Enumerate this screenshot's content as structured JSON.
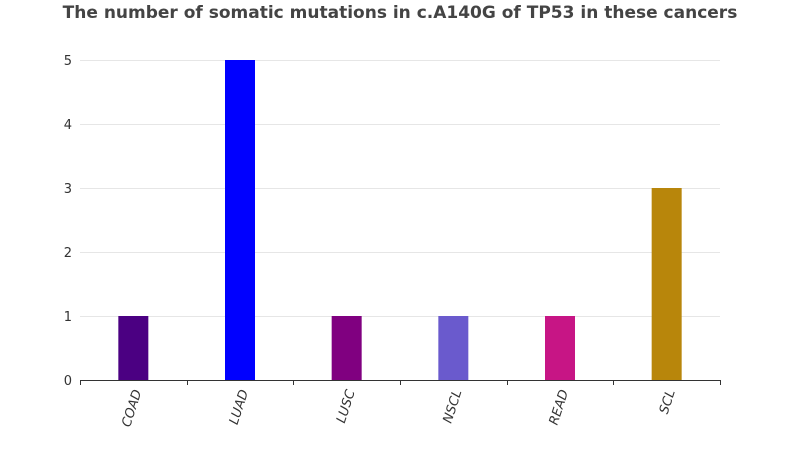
{
  "chart_data": {
    "type": "bar",
    "title": "The number of somatic mutations in c.A140G of TP53 in these cancers",
    "xlabel": "",
    "ylabel": "",
    "categories": [
      "COAD",
      "LUAD",
      "LUSC",
      "NSCL",
      "READ",
      "SCL"
    ],
    "values": [
      1,
      5,
      1,
      1,
      1,
      3
    ],
    "colors": [
      "#4b0082",
      "#0000ff",
      "#800080",
      "#6a5acd",
      "#c71585",
      "#b8860b"
    ],
    "ylim": [
      0,
      5
    ],
    "yticks": [
      0,
      1,
      2,
      3,
      4,
      5
    ],
    "grid": true,
    "legend": "none"
  }
}
